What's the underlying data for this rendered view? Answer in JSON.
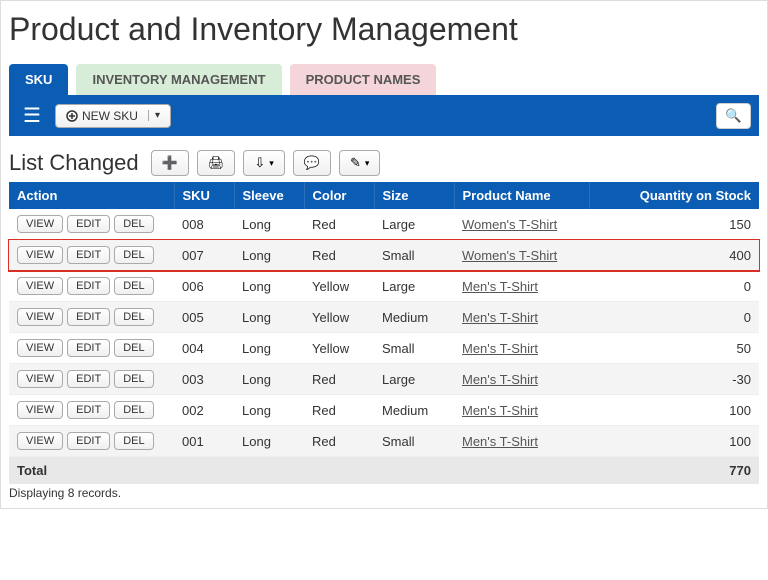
{
  "page": {
    "title": "Product and Inventory Management"
  },
  "tabs": {
    "sku": "SKU",
    "inventory": "INVENTORY MANAGEMENT",
    "products": "PRODUCT NAMES"
  },
  "toolbar": {
    "new_sku": "NEW SKU"
  },
  "subhead": {
    "title": "List Changed"
  },
  "table": {
    "headers": {
      "action": "Action",
      "sku": "SKU",
      "sleeve": "Sleeve",
      "color": "Color",
      "size": "Size",
      "product": "Product Name",
      "qty": "Quantity on Stock"
    },
    "buttons": {
      "view": "VIEW",
      "edit": "EDIT",
      "del": "DEL"
    },
    "rows": [
      {
        "sku": "008",
        "sleeve": "Long",
        "color": "Red",
        "size": "Large",
        "product": "Women's T-Shirt",
        "qty": "150",
        "highlight": false
      },
      {
        "sku": "007",
        "sleeve": "Long",
        "color": "Red",
        "size": "Small",
        "product": "Women's T-Shirt",
        "qty": "400",
        "highlight": true
      },
      {
        "sku": "006",
        "sleeve": "Long",
        "color": "Yellow",
        "size": "Large",
        "product": "Men's T-Shirt",
        "qty": "0",
        "highlight": false
      },
      {
        "sku": "005",
        "sleeve": "Long",
        "color": "Yellow",
        "size": "Medium",
        "product": "Men's T-Shirt",
        "qty": "0",
        "highlight": false
      },
      {
        "sku": "004",
        "sleeve": "Long",
        "color": "Yellow",
        "size": "Small",
        "product": "Men's T-Shirt",
        "qty": "50",
        "highlight": false
      },
      {
        "sku": "003",
        "sleeve": "Long",
        "color": "Red",
        "size": "Large",
        "product": "Men's T-Shirt",
        "qty": "-30",
        "highlight": false
      },
      {
        "sku": "002",
        "sleeve": "Long",
        "color": "Red",
        "size": "Medium",
        "product": "Men's T-Shirt",
        "qty": "100",
        "highlight": false
      },
      {
        "sku": "001",
        "sleeve": "Long",
        "color": "Red",
        "size": "Small",
        "product": "Men's T-Shirt",
        "qty": "100",
        "highlight": false
      }
    ],
    "total_label": "Total",
    "total_value": "770"
  },
  "footer": {
    "records": "Displaying 8 records."
  },
  "colors": {
    "primary": "#0b5db3",
    "highlight": "#d93025"
  }
}
